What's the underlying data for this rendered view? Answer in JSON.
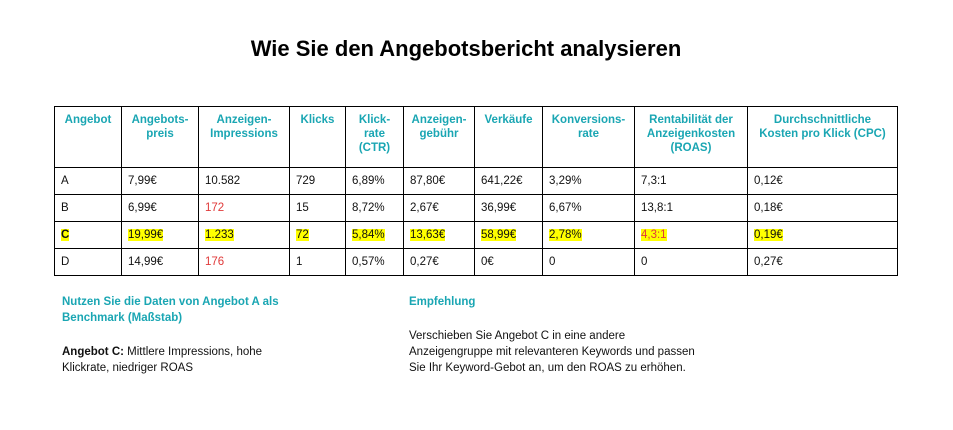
{
  "title": "Wie Sie den Angebotsbericht analysieren",
  "table": {
    "headers": [
      "Angebot",
      "Angebots-\npreis",
      "Anzeigen-\nImpressions",
      "Klicks",
      "Klick-\nrate\n(CTR)",
      "Anzeigen-\ngebühr",
      "Verkäufe",
      "Konversions-\nrate",
      "Rentabilität der\nAnzeigenkosten\n(ROAS)",
      "Durchschnittliche\nKosten pro Klick (CPC)"
    ],
    "rows": [
      [
        "A",
        "7,99€",
        "10.582",
        "729",
        "6,89%",
        "87,80€",
        "641,22€",
        "3,29%",
        "7,3:1",
        "0,12€"
      ],
      [
        "B",
        "6,99€",
        "172",
        "15",
        "8,72%",
        "2,67€",
        "36,99€",
        "6,67%",
        "13,8:1",
        "0,18€"
      ],
      [
        "C",
        "19,99€",
        "1.233",
        "72",
        "5,84%",
        "13,63€",
        "58,99€",
        "2,78%",
        "4,3:1",
        "0,19€"
      ],
      [
        "D",
        "14,99€",
        "176",
        "1",
        "0,57%",
        "0,27€",
        "0€",
        "0",
        "0",
        "0,27€"
      ]
    ]
  },
  "left_note": {
    "heading": "Nutzen Sie die Daten von Angebot A als Benchmark (Maßstab)",
    "label": "Angebot C:",
    "text": " Mittlere Impressions, hohe Klickrate, niedriger ROAS"
  },
  "right_note": {
    "heading": "Empfehlung",
    "text": "Verschieben Sie Angebot C in eine andere Anzeigengruppe mit relevanteren Keywords und passen Sie Ihr Keyword-Gebot an, um den ROAS zu erhöhen."
  },
  "colors": {
    "heading_teal": "#1aa6b3",
    "highlight_yellow": "#ffff00",
    "alert_red": "#e03a3a"
  }
}
